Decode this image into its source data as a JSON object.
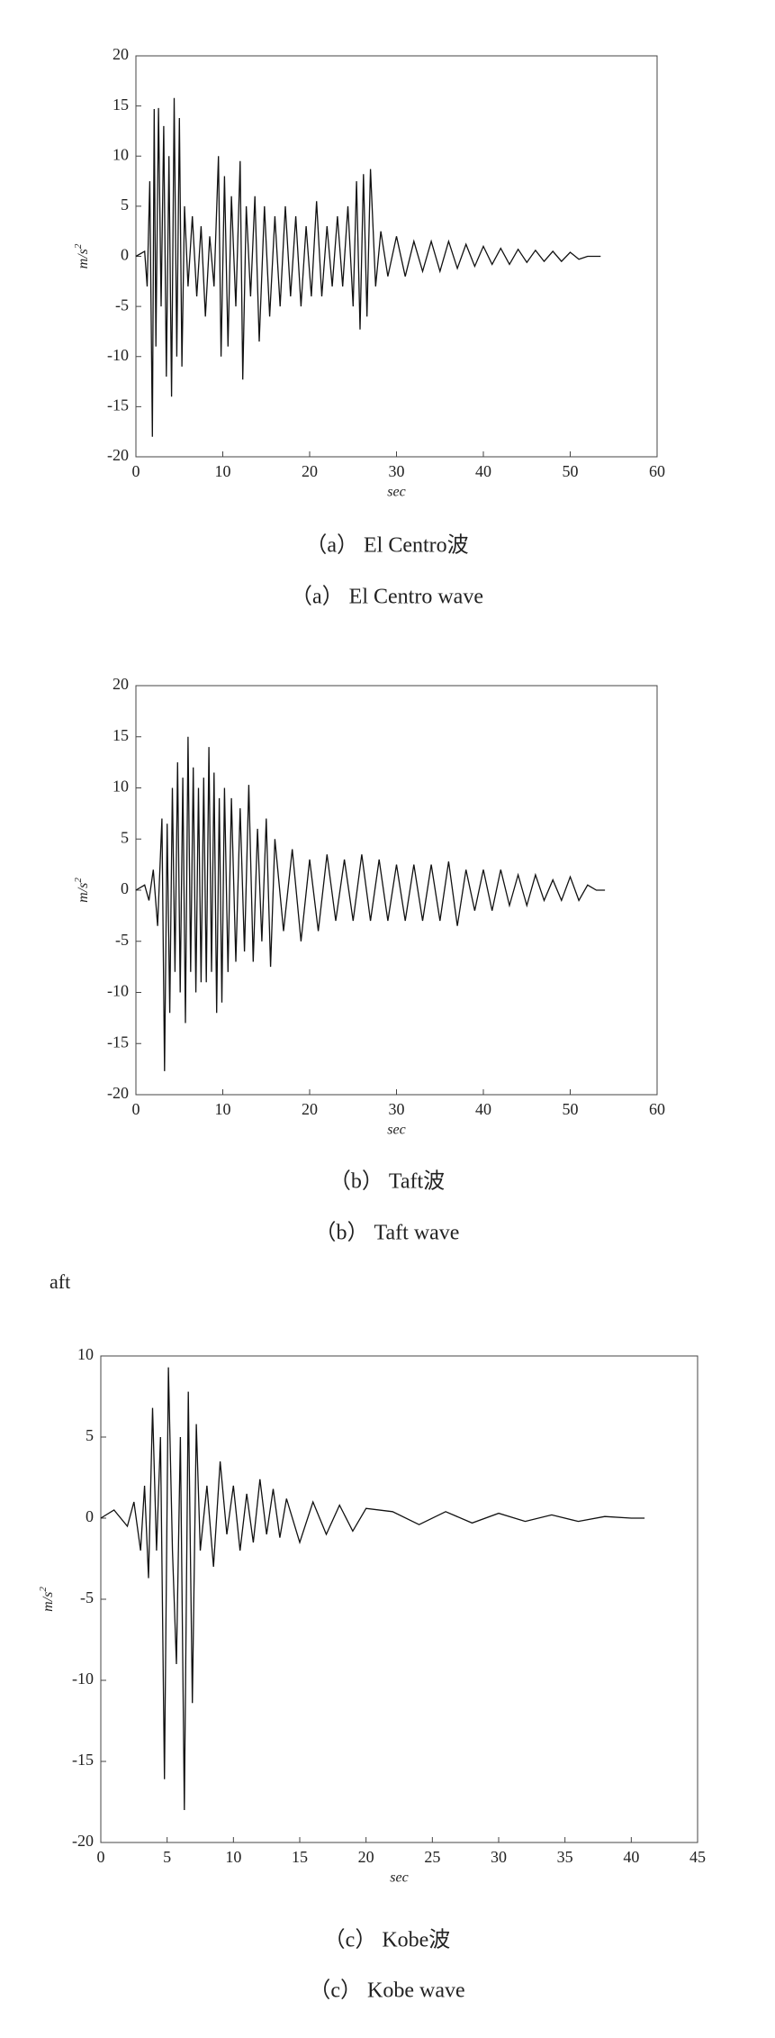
{
  "chart_data": [
    {
      "type": "line",
      "color": "#111111",
      "xlabel": "sec",
      "ylabel": "m/s",
      "ylabel_sup": "2",
      "captions": [
        "（a） El Centro波",
        "（a） El Centro wave"
      ],
      "xlim": [
        0,
        60
      ],
      "xticks": [
        0,
        10,
        20,
        30,
        40,
        50,
        60
      ],
      "ylim": [
        -20,
        20
      ],
      "yticks": [
        -20,
        -15,
        -10,
        -5,
        0,
        5,
        10,
        15,
        20
      ],
      "x": [
        0,
        1,
        1.3,
        1.6,
        1.9,
        2.1,
        2.3,
        2.6,
        2.9,
        3.2,
        3.5,
        3.8,
        4.1,
        4.4,
        4.7,
        5.0,
        5.3,
        5.6,
        6,
        6.5,
        7,
        7.5,
        8,
        8.5,
        9,
        9.5,
        9.8,
        10.2,
        10.6,
        11,
        11.5,
        12,
        12.3,
        12.7,
        13.2,
        13.7,
        14.2,
        14.8,
        15.4,
        16,
        16.6,
        17.2,
        17.8,
        18.4,
        19,
        19.6,
        20.2,
        20.8,
        21.4,
        22,
        22.6,
        23.2,
        23.8,
        24.4,
        25,
        25.4,
        25.8,
        26.2,
        26.6,
        27,
        27.6,
        28.2,
        29,
        30,
        31,
        32,
        33,
        34,
        35,
        36,
        37,
        38,
        39,
        40,
        41,
        42,
        43,
        44,
        45,
        46,
        47,
        48,
        49,
        50,
        51,
        52,
        53.5
      ],
      "values": [
        0,
        0.5,
        -3,
        7.5,
        -18,
        14.7,
        -9,
        14.8,
        -5,
        13,
        -12,
        10,
        -14,
        15.8,
        -10,
        13.8,
        -11,
        5,
        -3,
        4,
        -4,
        3,
        -6,
        2,
        -3,
        10,
        -10,
        8,
        -9,
        6,
        -5,
        9.5,
        -12.3,
        5,
        -4,
        6,
        -8.5,
        5,
        -6,
        4,
        -5,
        5,
        -4,
        4,
        -5,
        3,
        -4,
        5.5,
        -4,
        3,
        -3,
        4,
        -3,
        5,
        -5,
        7.5,
        -7.3,
        8.2,
        -6,
        8.7,
        -3,
        2.5,
        -2,
        2,
        -2,
        1.5,
        -1.5,
        1.5,
        -1.5,
        1.5,
        -1.2,
        1.2,
        -1,
        1,
        -0.8,
        0.8,
        -0.8,
        0.7,
        -0.6,
        0.6,
        -0.5,
        0.5,
        -0.5,
        0.4,
        -0.3,
        0,
        0
      ]
    },
    {
      "type": "line",
      "color": "#111111",
      "xlabel": "sec",
      "ylabel": "m/s",
      "ylabel_sup": "2",
      "captions": [
        "（b） Taft波",
        "（b） Taft wave"
      ],
      "xlim": [
        0,
        60
      ],
      "xticks": [
        0,
        10,
        20,
        30,
        40,
        50,
        60
      ],
      "ylim": [
        -20,
        20
      ],
      "yticks": [
        -20,
        -15,
        -10,
        -5,
        0,
        5,
        10,
        15,
        20
      ],
      "x": [
        0,
        1,
        1.5,
        2,
        2.5,
        3,
        3.3,
        3.6,
        3.9,
        4.2,
        4.5,
        4.8,
        5.1,
        5.4,
        5.7,
        6,
        6.3,
        6.6,
        6.9,
        7.2,
        7.5,
        7.8,
        8.1,
        8.4,
        8.7,
        9,
        9.3,
        9.6,
        9.9,
        10.2,
        10.6,
        11,
        11.5,
        12,
        12.5,
        13,
        13.5,
        14,
        14.5,
        15,
        15.5,
        16,
        17,
        18,
        19,
        20,
        21,
        22,
        23,
        24,
        25,
        26,
        27,
        28,
        29,
        30,
        31,
        32,
        33,
        34,
        35,
        36,
        37,
        38,
        39,
        40,
        41,
        42,
        43,
        44,
        45,
        46,
        47,
        48,
        49,
        50,
        51,
        52,
        53,
        54
      ],
      "values": [
        0,
        0.5,
        -1,
        2,
        -3.5,
        7,
        -17.7,
        6.5,
        -12,
        10,
        -8,
        12.5,
        -10,
        11,
        -13,
        15,
        -8,
        12,
        -10,
        10,
        -9,
        11,
        -9,
        14,
        -8,
        11.5,
        -12,
        9,
        -11,
        10,
        -8,
        9,
        -7,
        8,
        -6,
        10.3,
        -7,
        6,
        -5,
        7,
        -7.5,
        5,
        -4,
        4,
        -5,
        3,
        -4,
        3.5,
        -3,
        3,
        -3,
        3.5,
        -3,
        3,
        -3,
        2.5,
        -3,
        2.5,
        -3,
        2.5,
        -3,
        2.8,
        -3.5,
        2,
        -2,
        2,
        -2,
        2,
        -1.5,
        1.5,
        -1.5,
        1.5,
        -1,
        1,
        -1,
        1.3,
        -1,
        0.5,
        0,
        0
      ]
    },
    {
      "type": "line",
      "color": "#111111",
      "xlabel": "sec",
      "ylabel": "m/s",
      "ylabel_sup": "2",
      "captions": [
        "（c） Kobe波",
        "（c） Kobe wave"
      ],
      "xlim": [
        0,
        45
      ],
      "xticks": [
        0,
        5,
        10,
        15,
        20,
        25,
        30,
        35,
        40,
        45
      ],
      "ylim": [
        -20,
        10
      ],
      "yticks": [
        -20,
        -15,
        -10,
        -5,
        0,
        5,
        10
      ],
      "x": [
        0,
        1,
        2,
        2.5,
        3,
        3.3,
        3.6,
        3.9,
        4.2,
        4.5,
        4.8,
        5.1,
        5.4,
        5.7,
        6,
        6.3,
        6.6,
        6.9,
        7.2,
        7.5,
        8,
        8.5,
        9,
        9.5,
        10,
        10.5,
        11,
        11.5,
        12,
        12.5,
        13,
        13.5,
        14,
        15,
        16,
        17,
        18,
        19,
        20,
        22,
        24,
        26,
        28,
        30,
        32,
        34,
        36,
        38,
        40,
        41
      ],
      "values": [
        0,
        0.5,
        -0.5,
        1,
        -2,
        2,
        -3.7,
        6.8,
        -2,
        5,
        -16.1,
        9.3,
        -2,
        -9,
        5,
        -18,
        7.8,
        -11.4,
        5.8,
        -2,
        2,
        -3,
        3.5,
        -1,
        2,
        -2,
        1.5,
        -1.5,
        2.4,
        -1,
        1.8,
        -1.2,
        1.2,
        -1.5,
        1,
        -1,
        0.8,
        -0.8,
        0.6,
        0.4,
        -0.4,
        0.4,
        -0.3,
        0.3,
        -0.2,
        0.2,
        -0.2,
        0.1,
        0,
        0
      ]
    }
  ],
  "fragment": "aft"
}
